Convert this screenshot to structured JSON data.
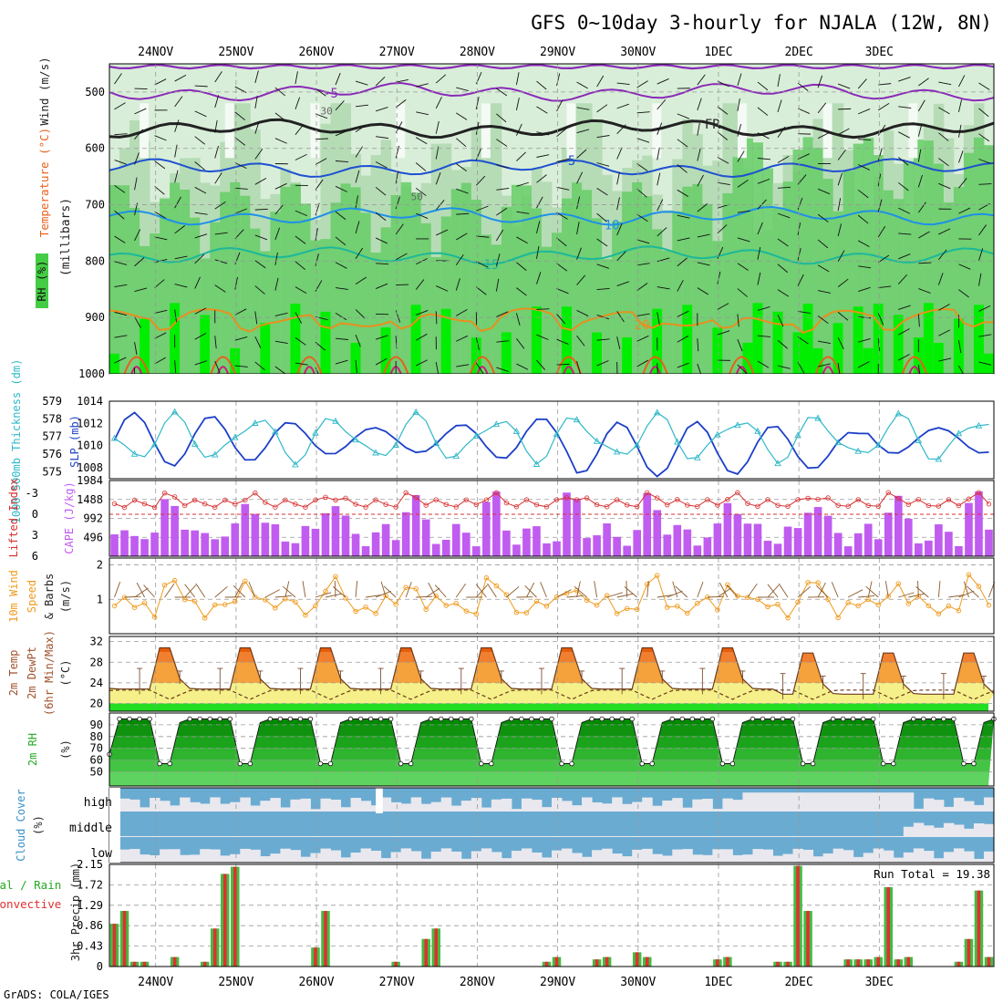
{
  "title": "GFS 0~10day 3-hourly for NJALA (12W, 8N)",
  "footer": "GrADS: COLA/IGES",
  "colors": {
    "rh_light": "#d9eed9",
    "rh_mid": "#b6dcb6",
    "rh_green": "#66cc66",
    "rh_bright": "#00ee00",
    "slp": "#1c3fc8",
    "thick": "#2fb8c8",
    "li": "#d83030",
    "cape": "#c05cf0",
    "wind": "#f09a1c",
    "temp_top": "#e85c0a",
    "temp_mid": "#f5a23c",
    "temp_low": "#f5f08a",
    "rh2m_dark": "#008a00",
    "rh2m_light": "#5fd35f",
    "cloud_bg": "#6aabd2",
    "cloud_fill": "#e8e8ee",
    "precip_total": "#44bb44",
    "precip_conv": "#e03030"
  },
  "chart_data": {
    "dates": [
      "24NOV",
      "25NOV",
      "26NOV",
      "27NOV",
      "28NOV",
      "29NOV",
      "30NOV",
      "1DEC",
      "2DEC",
      "3DEC"
    ],
    "panels": [
      {
        "id": "upper_air",
        "type": "heatmap",
        "ylabels": [
          "Wind (m/s)",
          "Temperature (°C)",
          "RH (%)",
          "(millibars)"
        ],
        "yticks": [
          500,
          600,
          700,
          800,
          900,
          1000
        ],
        "ylim": [
          1000,
          450
        ],
        "isotherm_labels": [
          "-5",
          "FR",
          "5",
          "10",
          "15",
          "20"
        ],
        "rh_labels": [
          "30",
          "50"
        ]
      },
      {
        "id": "slp_thickness",
        "type": "line",
        "ylabel_left": "1000-500mb Thickness (dm)",
        "ylabel_right": "SLP (mb)",
        "yticks_left": [
          575,
          576,
          577,
          578,
          579
        ],
        "yticks_right": [
          1008,
          1010,
          1012,
          1014
        ],
        "ylim_slp": [
          1007,
          1014
        ]
      },
      {
        "id": "li_cape",
        "type": "bar",
        "ylabel_left": "Lifted Index",
        "ylabel_right": "CAPE (J/kg)",
        "yticks_left": [
          -3,
          0,
          3,
          6
        ],
        "yticks_right": [
          496,
          992,
          1488,
          1984
        ],
        "ylim_cape": [
          0,
          1984
        ]
      },
      {
        "id": "wind10m",
        "type": "line",
        "ylabel": "10m Wind Speed & Barbs (m/s)",
        "yticks": [
          1,
          2
        ],
        "ylim": [
          0,
          2.2
        ]
      },
      {
        "id": "temp2m",
        "type": "area",
        "ylabel": "2m Temp 2m DewPt (6hr Min/Max) (°C)",
        "yticks": [
          20,
          24,
          28,
          32
        ],
        "ylim": [
          18.5,
          33
        ]
      },
      {
        "id": "rh2m",
        "type": "area",
        "ylabel": "2m RH (%)",
        "yticks": [
          50,
          60,
          70,
          80,
          90
        ],
        "ylim": [
          38,
          100
        ]
      },
      {
        "id": "cloud",
        "type": "bar",
        "ylabel": "Cloud Cover (%)",
        "levels": [
          "high",
          "middle",
          "low"
        ]
      },
      {
        "id": "precip",
        "type": "bar",
        "ylabel_left": "Total / Rain Convective",
        "ylabel": "3hr Precip (mm)",
        "yticks": [
          0,
          0.43,
          0.86,
          1.29,
          1.72,
          2.15
        ],
        "ylim": [
          0,
          2.15
        ],
        "run_total_label": "Run Total = 19.38",
        "bars": [
          {
            "t": 0.5,
            "v": 0.9
          },
          {
            "t": 1.5,
            "v": 1.17
          },
          {
            "t": 2.5,
            "v": 0.1
          },
          {
            "t": 3.5,
            "v": 0.1
          },
          {
            "t": 6.5,
            "v": 0.2
          },
          {
            "t": 9.5,
            "v": 0.1
          },
          {
            "t": 10.5,
            "v": 0.8
          },
          {
            "t": 11.5,
            "v": 1.95
          },
          {
            "t": 12.5,
            "v": 2.1
          },
          {
            "t": 20.5,
            "v": 0.4
          },
          {
            "t": 21.5,
            "v": 1.17
          },
          {
            "t": 28.5,
            "v": 0.1
          },
          {
            "t": 31.5,
            "v": 0.58
          },
          {
            "t": 32.5,
            "v": 0.8
          },
          {
            "t": 43.5,
            "v": 0.1
          },
          {
            "t": 44.5,
            "v": 0.2
          },
          {
            "t": 48.5,
            "v": 0.15
          },
          {
            "t": 49.5,
            "v": 0.2
          },
          {
            "t": 52.5,
            "v": 0.3
          },
          {
            "t": 53.5,
            "v": 0.2
          },
          {
            "t": 60.5,
            "v": 0.15
          },
          {
            "t": 61.5,
            "v": 0.2
          },
          {
            "t": 66.5,
            "v": 0.1
          },
          {
            "t": 67.5,
            "v": 0.1
          },
          {
            "t": 68.5,
            "v": 2.12
          },
          {
            "t": 69.5,
            "v": 1.17
          },
          {
            "t": 73.5,
            "v": 0.15
          },
          {
            "t": 74.5,
            "v": 0.15
          },
          {
            "t": 75.5,
            "v": 0.15
          },
          {
            "t": 76.5,
            "v": 0.2
          },
          {
            "t": 77.5,
            "v": 1.67
          },
          {
            "t": 78.5,
            "v": 0.15
          },
          {
            "t": 79.5,
            "v": 0.2
          },
          {
            "t": 84.5,
            "v": 0.1
          },
          {
            "t": 85.5,
            "v": 0.58
          },
          {
            "t": 86.5,
            "v": 1.6
          },
          {
            "t": 87.5,
            "v": 0.2
          }
        ]
      }
    ]
  }
}
